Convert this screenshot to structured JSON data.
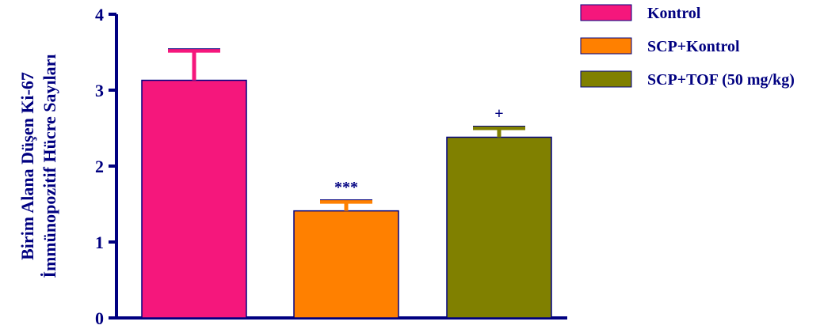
{
  "chart_data": {
    "type": "bar",
    "categories": [
      "Kontrol",
      "SCP+Kontrol",
      "SCP+TOF (50 mg/kg)"
    ],
    "values": [
      3.13,
      1.41,
      2.38
    ],
    "error_upper": [
      0.39,
      0.12,
      0.12
    ],
    "annotations": [
      "",
      "***",
      "+"
    ],
    "colors": [
      "#f5177c",
      "#ff8000",
      "#808000"
    ],
    "axis_color": "#000080",
    "ylabel_lines": [
      "Birim Alana Düşen Ki-67",
      "İmmünopozitif Hücre Sayıları"
    ],
    "yticks": [
      "0",
      "1",
      "2",
      "3",
      "4"
    ],
    "ylim": [
      0,
      4
    ],
    "grid": false,
    "legend_position": "top-right"
  }
}
